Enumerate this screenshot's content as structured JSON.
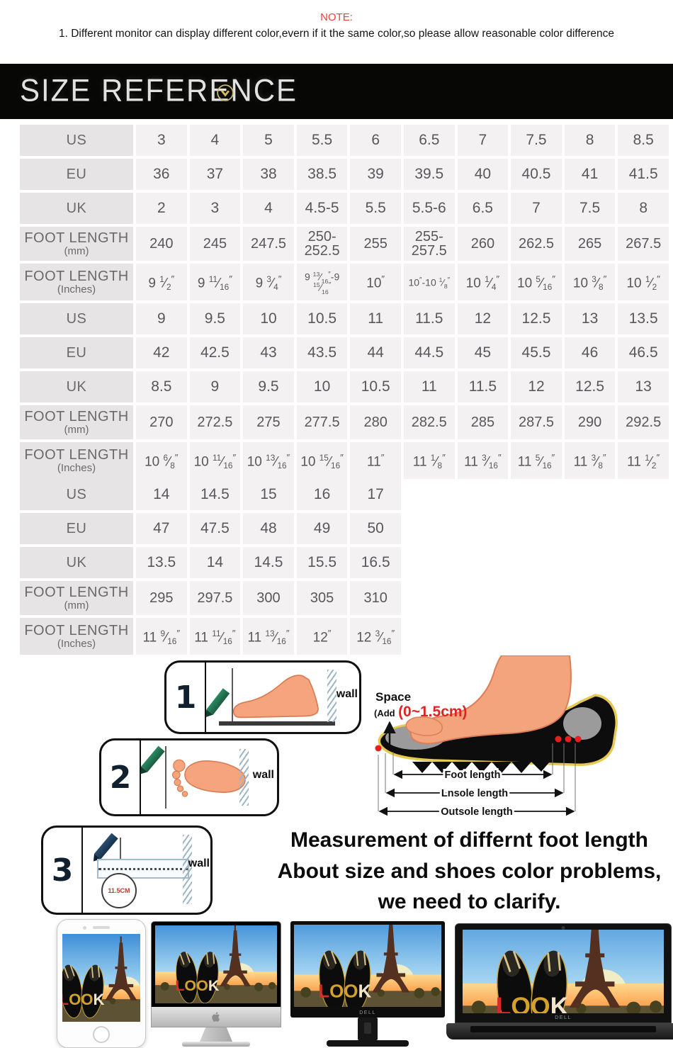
{
  "note": {
    "title": "NOTE:",
    "body": "1. Different monitor can display different color,evern if it the same color,so please allow reasonable color difference"
  },
  "banner": {
    "title": "SIZE REFERENCE"
  },
  "tables": [
    {
      "rows": [
        {
          "label": "US",
          "sub": "",
          "values": [
            "3",
            "4",
            "5",
            "5.5",
            "6",
            "6.5",
            "7",
            "7.5",
            "8",
            "8.5"
          ]
        },
        {
          "label": "EU",
          "sub": "",
          "values": [
            "36",
            "37",
            "38",
            "38.5",
            "39",
            "39.5",
            "40",
            "40.5",
            "41",
            "41.5"
          ]
        },
        {
          "label": "UK",
          "sub": "",
          "values": [
            "2",
            "3",
            "4",
            "4.5-5",
            "5.5",
            "5.5-6",
            "6.5",
            "7",
            "7.5",
            "8"
          ]
        },
        {
          "label": "FOOT LENGTH",
          "sub": "(mm)",
          "values": [
            "240",
            "245",
            "247.5",
            "250-252.5",
            "255",
            "255-257.5",
            "260",
            "262.5",
            "265",
            "267.5"
          ]
        },
        {
          "label": "FOOT LENGTH",
          "sub": "(Inches)",
          "values": [
            "9 1/2\"",
            "9 11/16\"",
            "9 3/4\"",
            "9 13/16\"-9 15/16\"",
            "10\"",
            "10\"-10 1/8\"",
            "10 1/4\"",
            "10 5/16\"",
            "10 3/8\"",
            "10 1/2\""
          ]
        }
      ]
    },
    {
      "rows": [
        {
          "label": "US",
          "sub": "",
          "values": [
            "9",
            "9.5",
            "10",
            "10.5",
            "11",
            "11.5",
            "12",
            "12.5",
            "13",
            "13.5"
          ]
        },
        {
          "label": "EU",
          "sub": "",
          "values": [
            "42",
            "42.5",
            "43",
            "43.5",
            "44",
            "44.5",
            "45",
            "45.5",
            "46",
            "46.5"
          ]
        },
        {
          "label": "UK",
          "sub": "",
          "values": [
            "8.5",
            "9",
            "9.5",
            "10",
            "10.5",
            "11",
            "11.5",
            "12",
            "12.5",
            "13"
          ]
        },
        {
          "label": "FOOT LENGTH",
          "sub": "(mm)",
          "values": [
            "270",
            "272.5",
            "275",
            "277.5",
            "280",
            "282.5",
            "285",
            "287.5",
            "290",
            "292.5"
          ]
        },
        {
          "label": "FOOT LENGTH",
          "sub": "(Inches)",
          "values": [
            "10 6/8\"",
            "10 11/16\"",
            "10 13/16\"",
            "10 15/16\"",
            "11\"",
            "11 1/8\"",
            "11 3/16\"",
            "11 5/16\"",
            "11 3/8\"",
            "11 1/2\""
          ]
        }
      ]
    },
    {
      "rows": [
        {
          "label": "US",
          "sub": "",
          "values": [
            "14",
            "14.5",
            "15",
            "16",
            "17"
          ]
        },
        {
          "label": "EU",
          "sub": "",
          "values": [
            "47",
            "47.5",
            "48",
            "49",
            "50"
          ]
        },
        {
          "label": "UK",
          "sub": "",
          "values": [
            "13.5",
            "14",
            "14.5",
            "15.5",
            "16.5"
          ]
        },
        {
          "label": "FOOT LENGTH",
          "sub": "(mm)",
          "values": [
            "295",
            "297.5",
            "300",
            "305",
            "310"
          ]
        },
        {
          "label": "FOOT LENGTH",
          "sub": "(Inches)",
          "values": [
            "11 9/16\"",
            "11 11/16\"",
            "11 13/16\"",
            "12\"",
            "12 3/16\""
          ]
        }
      ]
    }
  ],
  "steps": [
    {
      "num": "1",
      "wall_label": "wall"
    },
    {
      "num": "2",
      "wall_label": "wall"
    },
    {
      "num": "3",
      "wall_label": "wall",
      "ruler_value": "11.5CM"
    }
  ],
  "foot_diagram": {
    "space_label": "Space",
    "add_prefix": "(Add",
    "add_value": "(0~1.5cm)",
    "dim_labels": [
      "Foot length",
      "Lnsole length",
      "Outsole length"
    ]
  },
  "clarify": {
    "line1": "Measurement of differnt foot length",
    "line2": "About size and shoes color problems,",
    "line3": "we need to clarify."
  },
  "devices": {
    "brand_label": "DELL",
    "shoe_logo": "LOOK"
  },
  "colors": {
    "note_red": "#e7423c",
    "banner_bg": "#070705",
    "accent_gold": "#c9b877",
    "cell_bg": "#f3f1f2",
    "label_bg": "#e6e4e5",
    "space_red": "#e02424"
  }
}
